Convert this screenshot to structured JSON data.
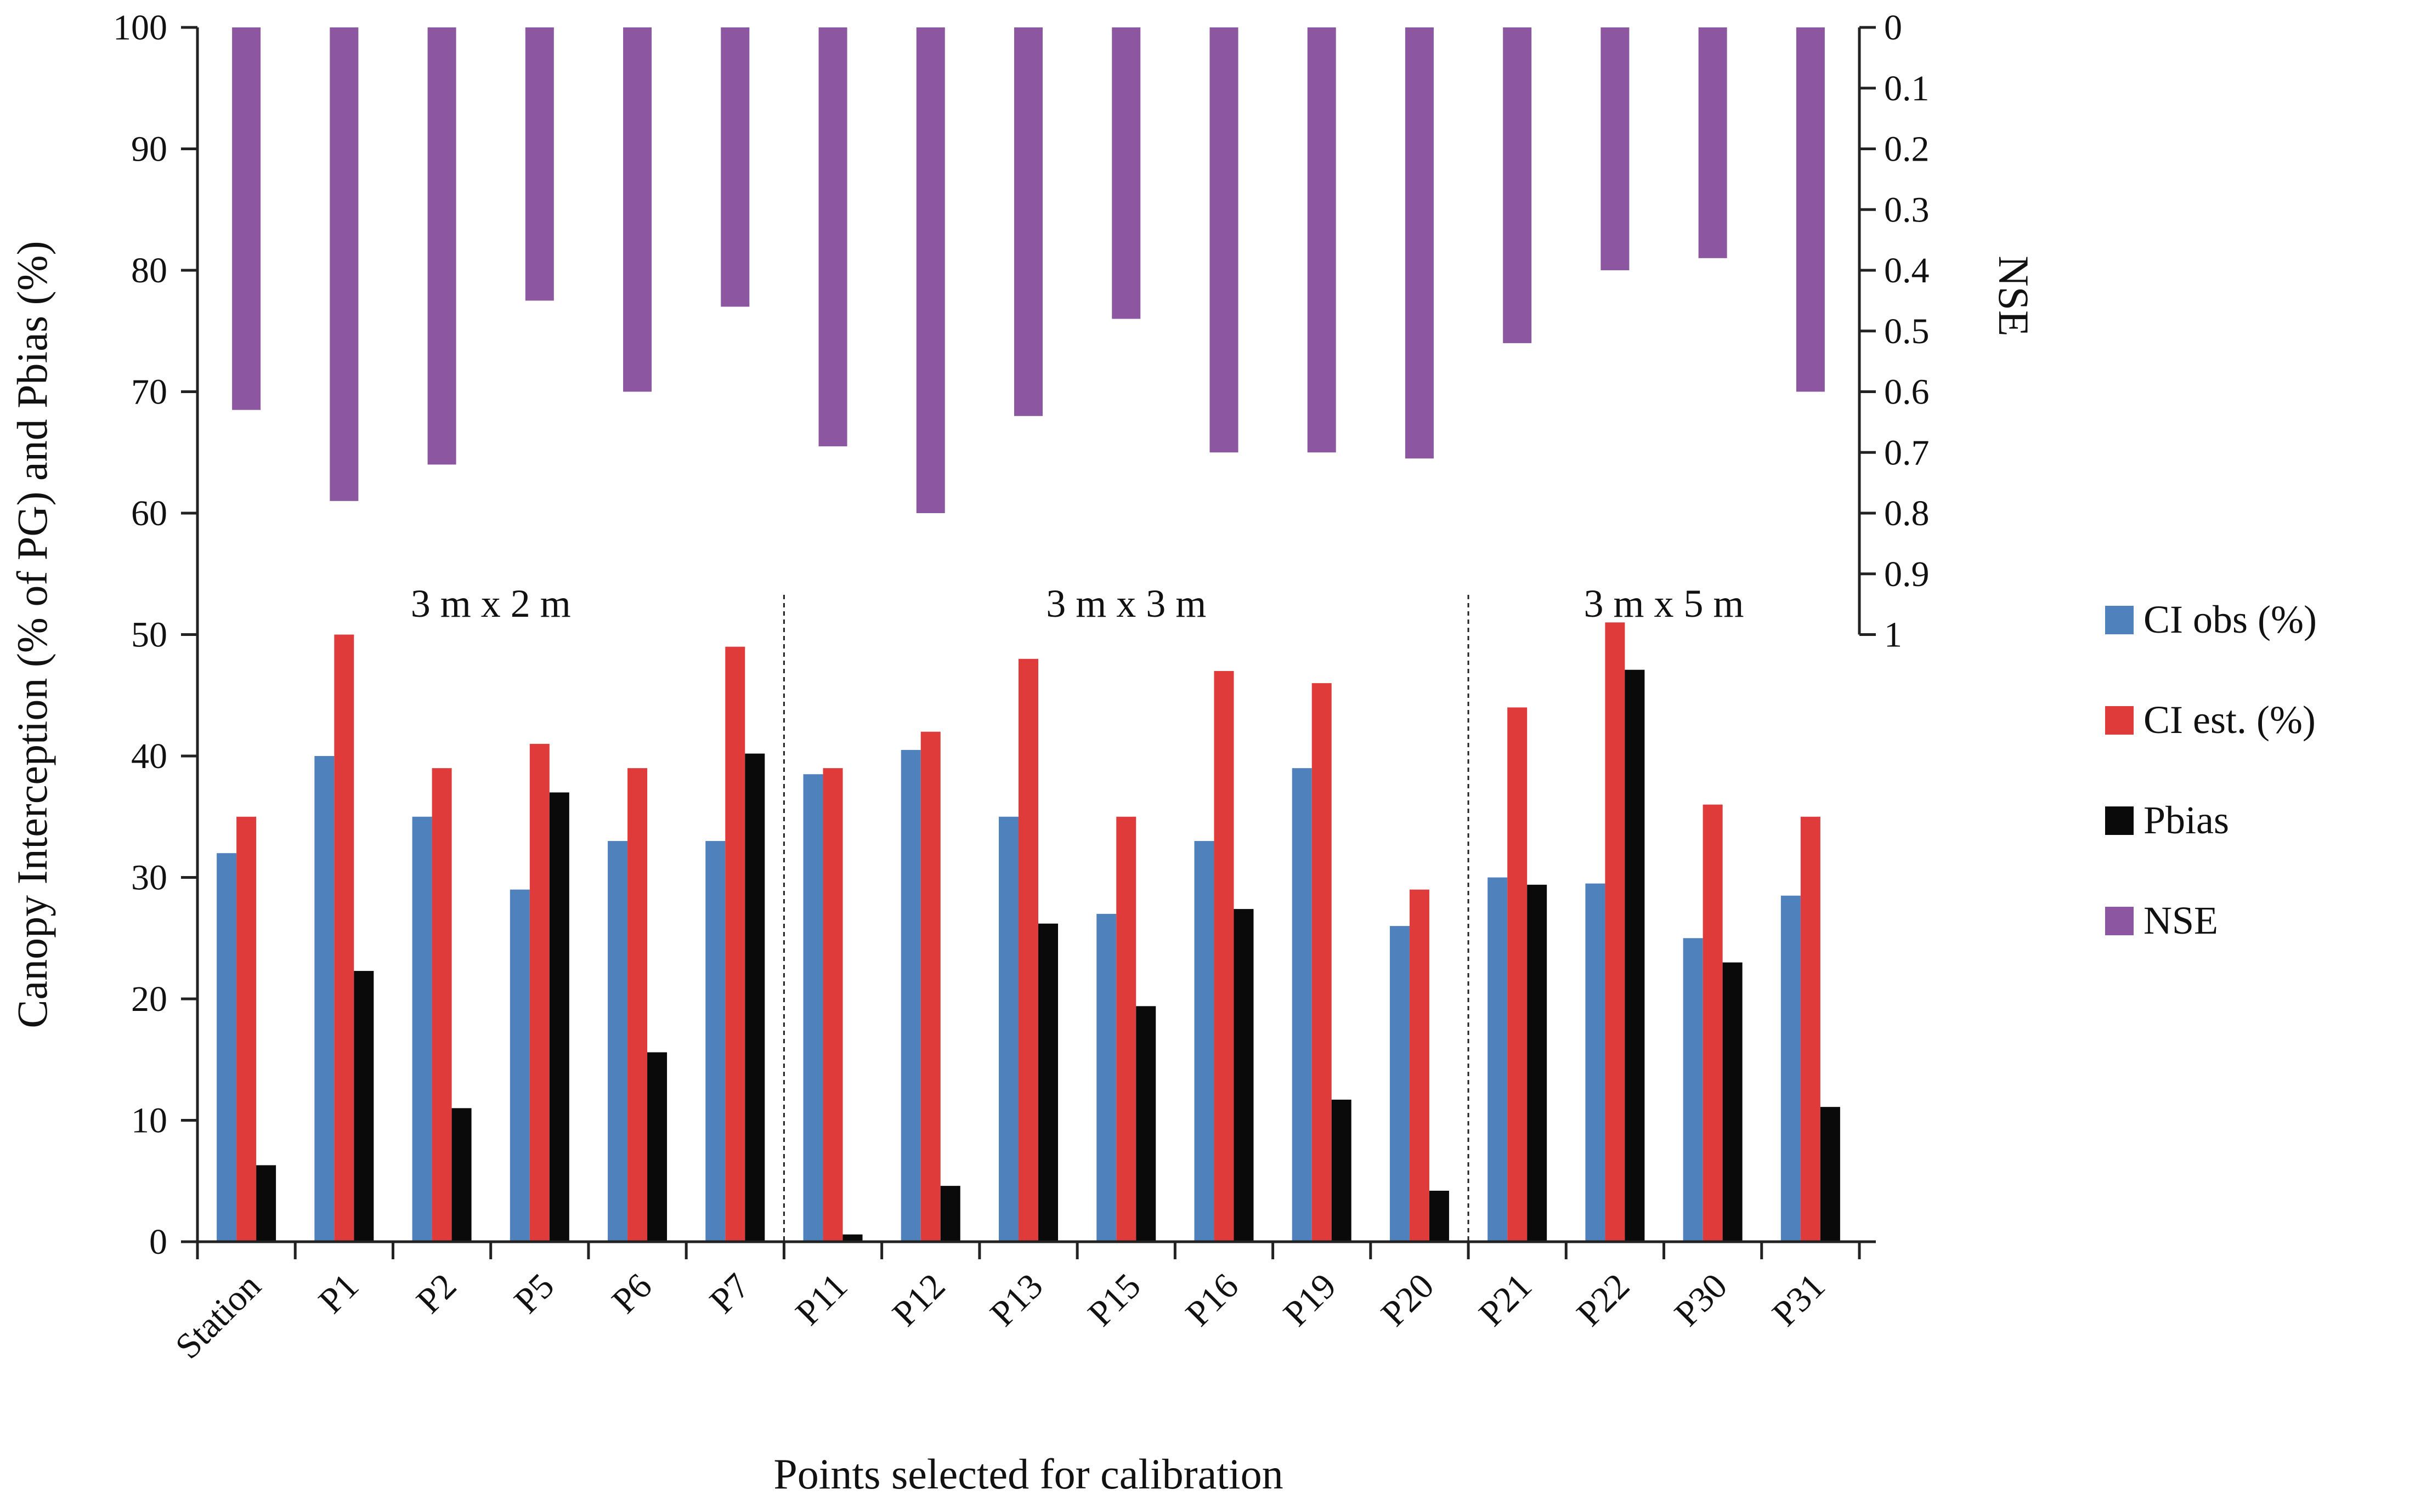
{
  "chart_data": {
    "type": "bar",
    "title": "",
    "xlabel": "Points selected for calibration",
    "ylabel": "Canopy Interception (% of PG) and Pbias (%)",
    "y2label": "NSE",
    "ylim": [
      0,
      100
    ],
    "yticks": [
      0,
      10,
      20,
      30,
      40,
      50,
      60,
      70,
      80,
      90,
      100
    ],
    "y2lim": [
      0,
      1
    ],
    "y2_inverted": true,
    "y2ticks": [
      "0",
      "0.1",
      "0.2",
      "0.3",
      "0.4",
      "0.5",
      "0.6",
      "0.7",
      "0.8",
      "0.9",
      "1"
    ],
    "categories": [
      "Station",
      "P1",
      "P2",
      "P5",
      "P6",
      "P7",
      "P11",
      "P12",
      "P13",
      "P15",
      "P16",
      "P19",
      "P20",
      "P21",
      "P22",
      "P30",
      "P31"
    ],
    "series": [
      {
        "name": "CI obs (%)",
        "axis": "left",
        "color": "#4f81bd",
        "values": [
          32,
          40,
          35,
          29,
          33,
          33,
          38.5,
          40.5,
          35,
          27,
          33,
          39,
          26,
          30,
          29.5,
          25,
          28.5
        ]
      },
      {
        "name": "CI est. (%)",
        "axis": "left",
        "color": "#e03b3b",
        "values": [
          35,
          50,
          39,
          41,
          39,
          49,
          39,
          42,
          48,
          35,
          47,
          46,
          29,
          44,
          51,
          36,
          35
        ]
      },
      {
        "name": "Pbias",
        "axis": "left",
        "color": "#0a0a0a",
        "values": [
          6.3,
          22.3,
          11,
          37,
          15.6,
          40.2,
          0.6,
          4.6,
          26.2,
          19.4,
          27.4,
          11.7,
          4.2,
          29.4,
          47.1,
          23,
          11.1
        ]
      },
      {
        "name": "NSE",
        "axis": "right",
        "color": "#8c57a0",
        "values": [
          0.63,
          0.78,
          0.72,
          0.45,
          0.6,
          0.46,
          0.69,
          0.8,
          0.64,
          0.48,
          0.7,
          0.7,
          0.71,
          0.52,
          0.4,
          0.38,
          0.6
        ]
      }
    ],
    "groups": [
      {
        "label": "3 m x 2 m",
        "from": 0,
        "to": 5
      },
      {
        "label": "3 m x 3 m",
        "from": 6,
        "to": 12
      },
      {
        "label": "3 m x 5 m",
        "from": 13,
        "to": 16
      }
    ],
    "legend": "right"
  }
}
